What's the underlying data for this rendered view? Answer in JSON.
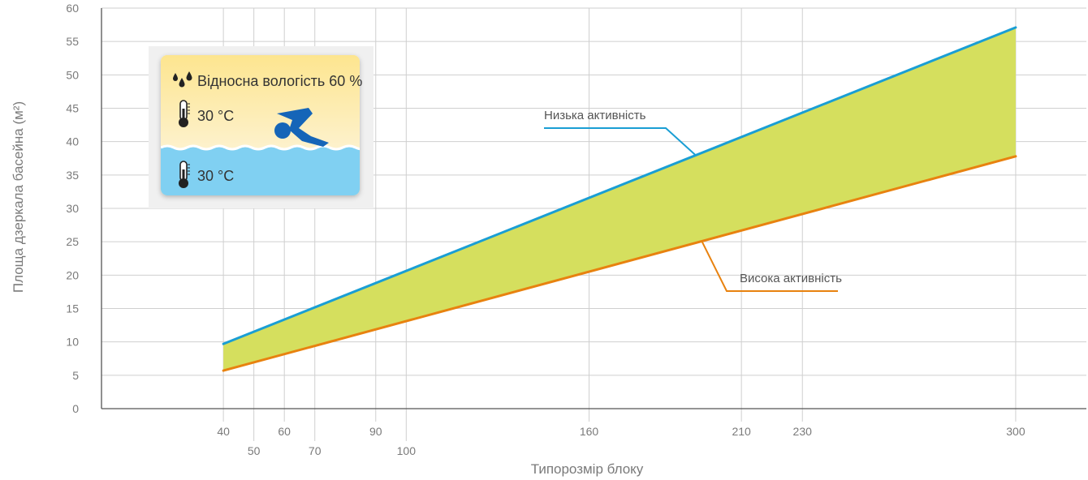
{
  "chart_data": {
    "type": "area",
    "xlabel": "Типорозмір блоку",
    "ylabel": "Площа дзеркала басейна (м²)",
    "ylim": [
      0,
      60
    ],
    "yticks": [
      0,
      5,
      10,
      15,
      20,
      25,
      30,
      35,
      40,
      45,
      50,
      55,
      60
    ],
    "xlim": [
      0,
      320
    ],
    "xticks_top_row": [
      40,
      60,
      90,
      160,
      210,
      230,
      300
    ],
    "xticks_bottom_row": [
      50,
      70,
      100
    ],
    "grid": true,
    "colors": {
      "low_activity": "#1a9ed4",
      "high_activity": "#e8820f",
      "band_fill": "#d5df5e",
      "grid": "#cfcfcf",
      "axis": "#555555"
    },
    "series": [
      {
        "name": "Низька активність",
        "x": [
          40,
          300
        ],
        "y": [
          9.7,
          57.1
        ]
      },
      {
        "name": "Висока активність",
        "x": [
          40,
          300
        ],
        "y": [
          5.7,
          37.8
        ]
      }
    ],
    "annotations": [
      {
        "text": "Низька активність",
        "series": "low_activity",
        "color": "#1a9ed4"
      },
      {
        "text": "Висока активність",
        "series": "high_activity",
        "color": "#e8820f"
      }
    ]
  },
  "info_box": {
    "humidity": "Відносна вологість 60 %",
    "air_temp": "30 °C",
    "water_temp": "30 °C",
    "icons": [
      "water-drops-icon",
      "thermometer-icon",
      "swimmer-icon"
    ]
  }
}
